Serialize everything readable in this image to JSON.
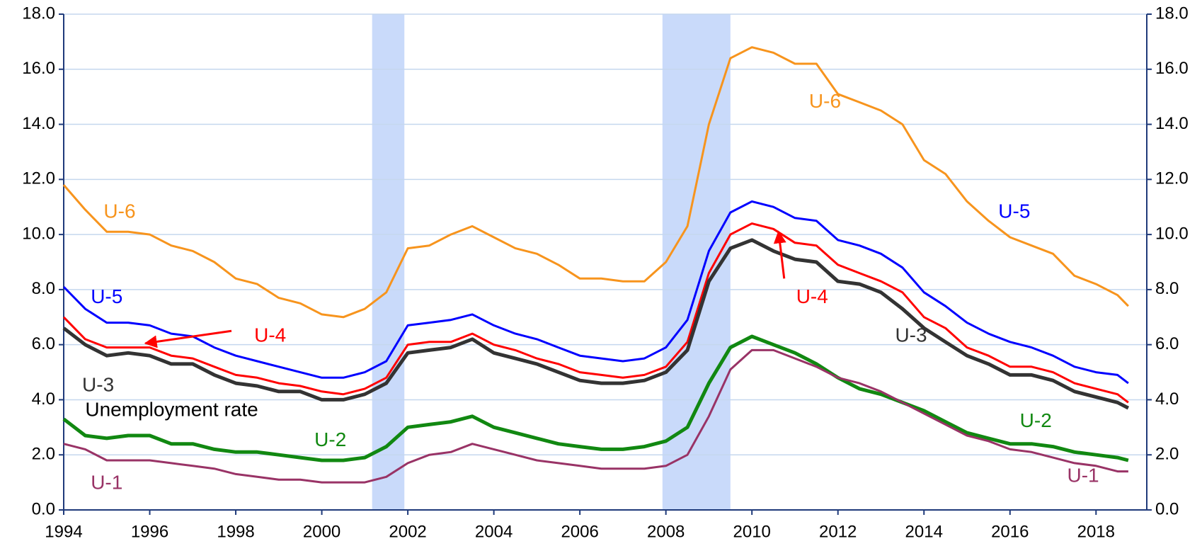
{
  "chart_data": {
    "type": "line",
    "x": [
      1994,
      1994.5,
      1995,
      1995.5,
      1996,
      1996.5,
      1997,
      1997.5,
      1998,
      1998.5,
      1999,
      1999.5,
      2000,
      2000.5,
      2001,
      2001.5,
      2002,
      2002.5,
      2003,
      2003.5,
      2004,
      2004.5,
      2005,
      2005.5,
      2006,
      2006.5,
      2007,
      2007.5,
      2008,
      2008.5,
      2009,
      2009.5,
      2010,
      2010.5,
      2011,
      2011.5,
      2012,
      2012.5,
      2013,
      2013.5,
      2014,
      2014.5,
      2015,
      2015.5,
      2016,
      2016.5,
      2017,
      2017.5,
      2018,
      2018.5,
      2018.75
    ],
    "series": [
      {
        "name": "U-6",
        "color": "#f7941d",
        "values": [
          11.8,
          10.9,
          10.1,
          10.1,
          10.0,
          9.6,
          9.4,
          9.0,
          8.4,
          8.2,
          7.7,
          7.5,
          7.1,
          7.0,
          7.3,
          7.9,
          9.5,
          9.6,
          10.0,
          10.3,
          9.9,
          9.5,
          9.3,
          8.9,
          8.4,
          8.4,
          8.3,
          8.3,
          9.0,
          10.3,
          14.0,
          16.4,
          16.8,
          16.6,
          16.2,
          16.2,
          15.1,
          14.8,
          14.5,
          14.0,
          12.7,
          12.2,
          11.2,
          10.5,
          9.9,
          9.6,
          9.3,
          8.5,
          8.2,
          7.8,
          7.4
        ]
      },
      {
        "name": "U-5",
        "color": "#0000ff",
        "values": [
          8.1,
          7.3,
          6.8,
          6.8,
          6.7,
          6.4,
          6.3,
          5.9,
          5.6,
          5.4,
          5.2,
          5.0,
          4.8,
          4.8,
          5.0,
          5.4,
          6.7,
          6.8,
          6.9,
          7.1,
          6.7,
          6.4,
          6.2,
          5.9,
          5.6,
          5.5,
          5.4,
          5.5,
          5.9,
          6.9,
          9.4,
          10.8,
          11.2,
          11.0,
          10.6,
          10.5,
          9.8,
          9.6,
          9.3,
          8.8,
          7.9,
          7.4,
          6.8,
          6.4,
          6.1,
          5.9,
          5.6,
          5.2,
          5.0,
          4.9,
          4.6
        ]
      },
      {
        "name": "U-4",
        "color": "#ff0000",
        "values": [
          7.0,
          6.2,
          5.9,
          5.9,
          5.9,
          5.6,
          5.5,
          5.2,
          4.9,
          4.8,
          4.6,
          4.5,
          4.3,
          4.2,
          4.4,
          4.8,
          6.0,
          6.1,
          6.1,
          6.4,
          6.0,
          5.8,
          5.5,
          5.3,
          5.0,
          4.9,
          4.8,
          4.9,
          5.2,
          6.1,
          8.6,
          10.0,
          10.4,
          10.2,
          9.7,
          9.6,
          8.9,
          8.6,
          8.3,
          7.9,
          7.0,
          6.6,
          5.9,
          5.6,
          5.2,
          5.2,
          5.0,
          4.6,
          4.4,
          4.2,
          3.9
        ]
      },
      {
        "name": "U-3",
        "color": "#333333",
        "values": [
          6.6,
          6.0,
          5.6,
          5.7,
          5.6,
          5.3,
          5.3,
          4.9,
          4.6,
          4.5,
          4.3,
          4.3,
          4.0,
          4.0,
          4.2,
          4.6,
          5.7,
          5.8,
          5.9,
          6.2,
          5.7,
          5.5,
          5.3,
          5.0,
          4.7,
          4.6,
          4.6,
          4.7,
          5.0,
          5.8,
          8.3,
          9.5,
          9.8,
          9.4,
          9.1,
          9.0,
          8.3,
          8.2,
          7.9,
          7.3,
          6.6,
          6.1,
          5.6,
          5.3,
          4.9,
          4.9,
          4.7,
          4.3,
          4.1,
          3.9,
          3.7
        ]
      },
      {
        "name": "U-2",
        "color": "#118811",
        "values": [
          3.3,
          2.7,
          2.6,
          2.7,
          2.7,
          2.4,
          2.4,
          2.2,
          2.1,
          2.1,
          2.0,
          1.9,
          1.8,
          1.8,
          1.9,
          2.3,
          3.0,
          3.1,
          3.2,
          3.4,
          3.0,
          2.8,
          2.6,
          2.4,
          2.3,
          2.2,
          2.2,
          2.3,
          2.5,
          3.0,
          4.6,
          5.9,
          6.3,
          6.0,
          5.7,
          5.3,
          4.8,
          4.4,
          4.2,
          3.9,
          3.6,
          3.2,
          2.8,
          2.6,
          2.4,
          2.4,
          2.3,
          2.1,
          2.0,
          1.9,
          1.8
        ]
      },
      {
        "name": "U-1",
        "color": "#993366",
        "values": [
          2.4,
          2.2,
          1.8,
          1.8,
          1.8,
          1.7,
          1.6,
          1.5,
          1.3,
          1.2,
          1.1,
          1.1,
          1.0,
          1.0,
          1.0,
          1.2,
          1.7,
          2.0,
          2.1,
          2.4,
          2.2,
          2.0,
          1.8,
          1.7,
          1.6,
          1.5,
          1.5,
          1.5,
          1.6,
          2.0,
          3.4,
          5.1,
          5.8,
          5.8,
          5.5,
          5.2,
          4.8,
          4.6,
          4.3,
          3.9,
          3.5,
          3.1,
          2.7,
          2.5,
          2.2,
          2.1,
          1.9,
          1.7,
          1.6,
          1.4,
          1.4
        ]
      }
    ],
    "annotations": [
      "Unemployment rate"
    ],
    "shaded_periods": [
      [
        2001.17,
        2001.92
      ],
      [
        2007.92,
        2009.5
      ]
    ],
    "shade_color": "#c9dafa",
    "xlim": [
      1994,
      2019.18
    ],
    "xticks": [
      1994,
      1996,
      1998,
      2000,
      2002,
      2004,
      2006,
      2008,
      2010,
      2012,
      2014,
      2016,
      2018
    ],
    "ylim": [
      0,
      18
    ],
    "yticks": [
      {
        "value": 0,
        "label": "0.0"
      },
      {
        "value": 2,
        "label": "2.0"
      },
      {
        "value": 4,
        "label": "4.0"
      },
      {
        "value": 6,
        "label": "6.0"
      },
      {
        "value": 8,
        "label": "8.0"
      },
      {
        "value": 10,
        "label": "10.0"
      },
      {
        "value": 12,
        "label": "12.0"
      },
      {
        "value": 14,
        "label": "14.0"
      },
      {
        "value": 16,
        "label": "16.0"
      },
      {
        "value": 18,
        "label": "18.0"
      }
    ],
    "y2lim": [
      0,
      18
    ],
    "y2ticks": [
      {
        "value": 0,
        "label": "0.0"
      },
      {
        "value": 2,
        "label": "2.0"
      },
      {
        "value": 4,
        "label": "4.0"
      },
      {
        "value": 6,
        "label": "6.0"
      },
      {
        "value": 8,
        "label": "8.0"
      },
      {
        "value": 10,
        "label": "10.0"
      },
      {
        "value": 12,
        "label": "12.0"
      },
      {
        "value": 14,
        "label": "14.0"
      },
      {
        "value": 16,
        "label": "16.0"
      },
      {
        "value": 18,
        "label": "18.0"
      }
    ],
    "grid": true
  }
}
